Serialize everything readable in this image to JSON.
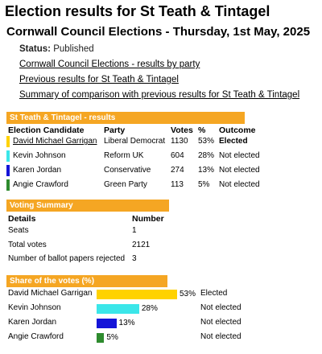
{
  "header": {
    "title": "Election results for St Teath & Tintagel",
    "subtitle": "Cornwall Council Elections - Thursday, 1st May, 2025"
  },
  "status": {
    "label": "Status:",
    "value": "Published"
  },
  "links": [
    {
      "text": "Cornwall Council Elections - results by party"
    },
    {
      "text": "Previous results for St Teath & Tintagel"
    },
    {
      "text": "Summary of comparison with previous results for St Teath & Tintagel"
    }
  ],
  "results_section": {
    "heading": "St Teath & Tintagel - results",
    "columns": {
      "candidate": "Election Candidate",
      "party": "Party",
      "votes": "Votes",
      "pct": "%",
      "outcome": "Outcome"
    },
    "rows": [
      {
        "candidate": "David Michael Garrigan",
        "party": "Liberal Democrat",
        "votes": "1130",
        "pct": "53%",
        "outcome": "Elected",
        "color": "#ffd200"
      },
      {
        "candidate": "Kevin Johnson",
        "party": "Reform UK",
        "votes": "604",
        "pct": "28%",
        "outcome": "Not elected",
        "color": "#3be6e9"
      },
      {
        "candidate": "Karen Jordan",
        "party": "Conservative",
        "votes": "274",
        "pct": "13%",
        "outcome": "Not elected",
        "color": "#1414d8"
      },
      {
        "candidate": "Angie Crawford",
        "party": "Green Party",
        "votes": "113",
        "pct": "5%",
        "outcome": "Not elected",
        "color": "#2e8b2e"
      }
    ]
  },
  "voting_summary": {
    "heading": "Voting Summary",
    "columns": {
      "details": "Details",
      "number": "Number"
    },
    "rows": [
      {
        "label": "Seats",
        "value": "1"
      },
      {
        "label": "Total votes",
        "value": "2121"
      },
      {
        "label": "Number of ballot papers rejected",
        "value": "3"
      }
    ]
  },
  "share_section": {
    "heading": "Share of the votes (%)"
  },
  "chart_data": {
    "type": "bar",
    "categories": [
      "David Michael Garrigan",
      "Kevin Johnson",
      "Karen Jordan",
      "Angie Crawford"
    ],
    "values": [
      53,
      28,
      13,
      5
    ],
    "labels": [
      "53%",
      "28%",
      "13%",
      "5%"
    ],
    "outcomes": [
      "Elected",
      "Not elected",
      "Not elected",
      "Not elected"
    ],
    "colors": [
      "#ffd200",
      "#3be6e9",
      "#1414d8",
      "#2e8b2e"
    ],
    "title": "Share of the votes (%)",
    "xlim": [
      0,
      100
    ]
  },
  "colors": {
    "accent": "#f5a623"
  }
}
